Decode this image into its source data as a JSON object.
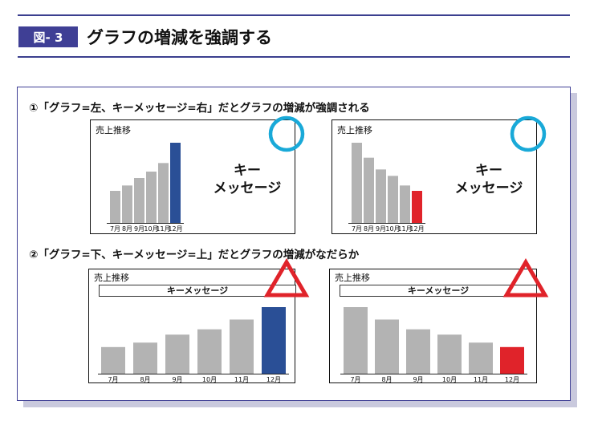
{
  "header": {
    "badge": "図- 3",
    "title": "グラフの増減を強調する"
  },
  "sections": [
    {
      "title": "①「グラフ=左、キーメッセージ=右」だとグラフの増減が強調される",
      "verdict": "good"
    },
    {
      "title": "②「グラフ=下、キーメッセージ=上」だとグラフの増減がなだらか",
      "verdict": "neutral"
    }
  ],
  "cards": [
    {
      "title": "売上推移",
      "key_message_lines": [
        "キー",
        "メッセージ"
      ],
      "mark": "circle-icon"
    },
    {
      "title": "売上推移",
      "key_message_lines": [
        "キー",
        "メッセージ"
      ],
      "mark": "circle-icon"
    },
    {
      "title": "売上推移",
      "key_message": "キーメッセージ",
      "mark": "triangle-icon"
    },
    {
      "title": "売上推移",
      "key_message": "キーメッセージ",
      "mark": "triangle-icon"
    }
  ],
  "colors": {
    "accent": "#3f3f95",
    "bar_gray": "#b3b3b3",
    "increase": "#2a4f96",
    "decrease": "#e0232a",
    "circle": "#19a9d8",
    "triangle": "#e0232a"
  },
  "chart_data": [
    {
      "type": "bar",
      "title": "売上推移",
      "categories": [
        "7月",
        "8月",
        "9月",
        "10月",
        "11月",
        "12月"
      ],
      "values": [
        3,
        3.5,
        4.2,
        4.8,
        5.6,
        7.5
      ],
      "ylim": [
        0,
        7.5
      ],
      "highlight_index": 5,
      "highlight_color": "#2a4f96"
    },
    {
      "type": "bar",
      "title": "売上推移",
      "categories": [
        "7月",
        "8月",
        "9月",
        "10月",
        "11月",
        "12月"
      ],
      "values": [
        7.5,
        6.1,
        5,
        4.4,
        3.5,
        3
      ],
      "ylim": [
        0,
        7.5
      ],
      "highlight_index": 5,
      "highlight_color": "#e0232a"
    },
    {
      "type": "bar",
      "title": "売上推移",
      "categories": [
        "7月",
        "8月",
        "9月",
        "10月",
        "11月",
        "12月"
      ],
      "values": [
        3,
        3.5,
        4.4,
        5,
        6.1,
        7.5
      ],
      "ylim": [
        0,
        7.5
      ],
      "highlight_index": 5,
      "highlight_color": "#2a4f96"
    },
    {
      "type": "bar",
      "title": "売上推移",
      "categories": [
        "7月",
        "8月",
        "9月",
        "10月",
        "11月",
        "12月"
      ],
      "values": [
        7.5,
        6.1,
        5,
        4.4,
        3.5,
        3
      ],
      "ylim": [
        0,
        7.5
      ],
      "highlight_index": 5,
      "highlight_color": "#e0232a"
    }
  ]
}
